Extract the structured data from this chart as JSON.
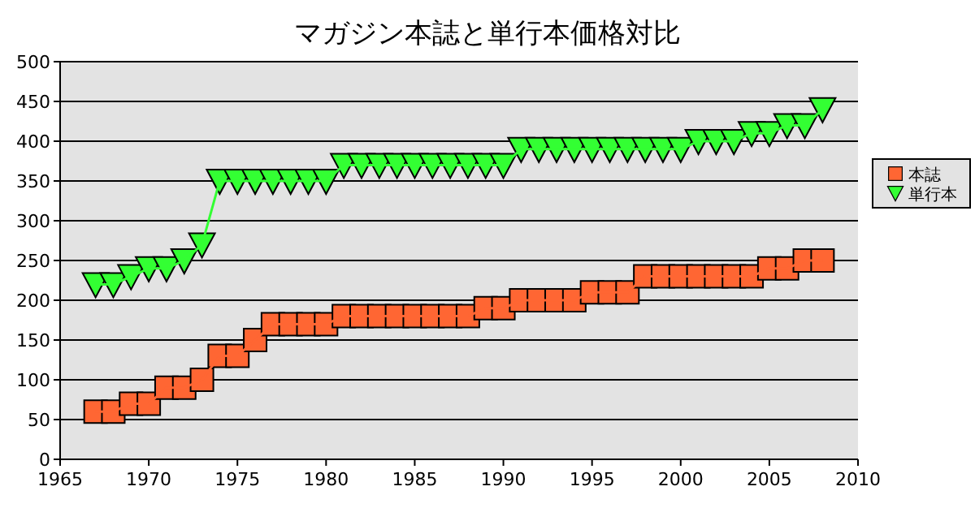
{
  "chart_data": {
    "type": "line",
    "title": "マガジン本誌と単行本価格対比",
    "x": [
      1967,
      1968,
      1969,
      1970,
      1971,
      1972,
      1973,
      1974,
      1975,
      1976,
      1977,
      1978,
      1979,
      1980,
      1981,
      1982,
      1983,
      1984,
      1985,
      1986,
      1987,
      1988,
      1989,
      1990,
      1991,
      1992,
      1993,
      1994,
      1995,
      1996,
      1997,
      1998,
      1999,
      2000,
      2001,
      2002,
      2003,
      2004,
      2005,
      2006,
      2007,
      2008
    ],
    "series": [
      {
        "name": "本誌",
        "color": "#ff6633",
        "marker": "square",
        "values": [
          60,
          60,
          70,
          70,
          90,
          90,
          100,
          130,
          130,
          150,
          170,
          170,
          170,
          170,
          180,
          180,
          180,
          180,
          180,
          180,
          180,
          180,
          190,
          190,
          200,
          200,
          200,
          200,
          210,
          210,
          210,
          230,
          230,
          230,
          230,
          230,
          230,
          230,
          240,
          240,
          250,
          250
        ]
      },
      {
        "name": "単行本",
        "color": "#33ff33",
        "marker": "triangle",
        "values": [
          220,
          220,
          230,
          240,
          240,
          250,
          270,
          350,
          350,
          350,
          350,
          350,
          350,
          350,
          370,
          370,
          370,
          370,
          370,
          370,
          370,
          370,
          370,
          370,
          390,
          390,
          390,
          390,
          390,
          390,
          390,
          390,
          390,
          390,
          400,
          400,
          400,
          410,
          410,
          420,
          420,
          440
        ]
      }
    ],
    "xlim": [
      1965,
      2010
    ],
    "xticks": [
      1965,
      1970,
      1975,
      1980,
      1985,
      1990,
      1995,
      2000,
      2005,
      2010
    ],
    "ylim": [
      0,
      500
    ],
    "yticks": [
      0,
      50,
      100,
      150,
      200,
      250,
      300,
      350,
      400,
      450,
      500
    ],
    "grid": "y",
    "legend": "right",
    "line_style": "solid"
  }
}
